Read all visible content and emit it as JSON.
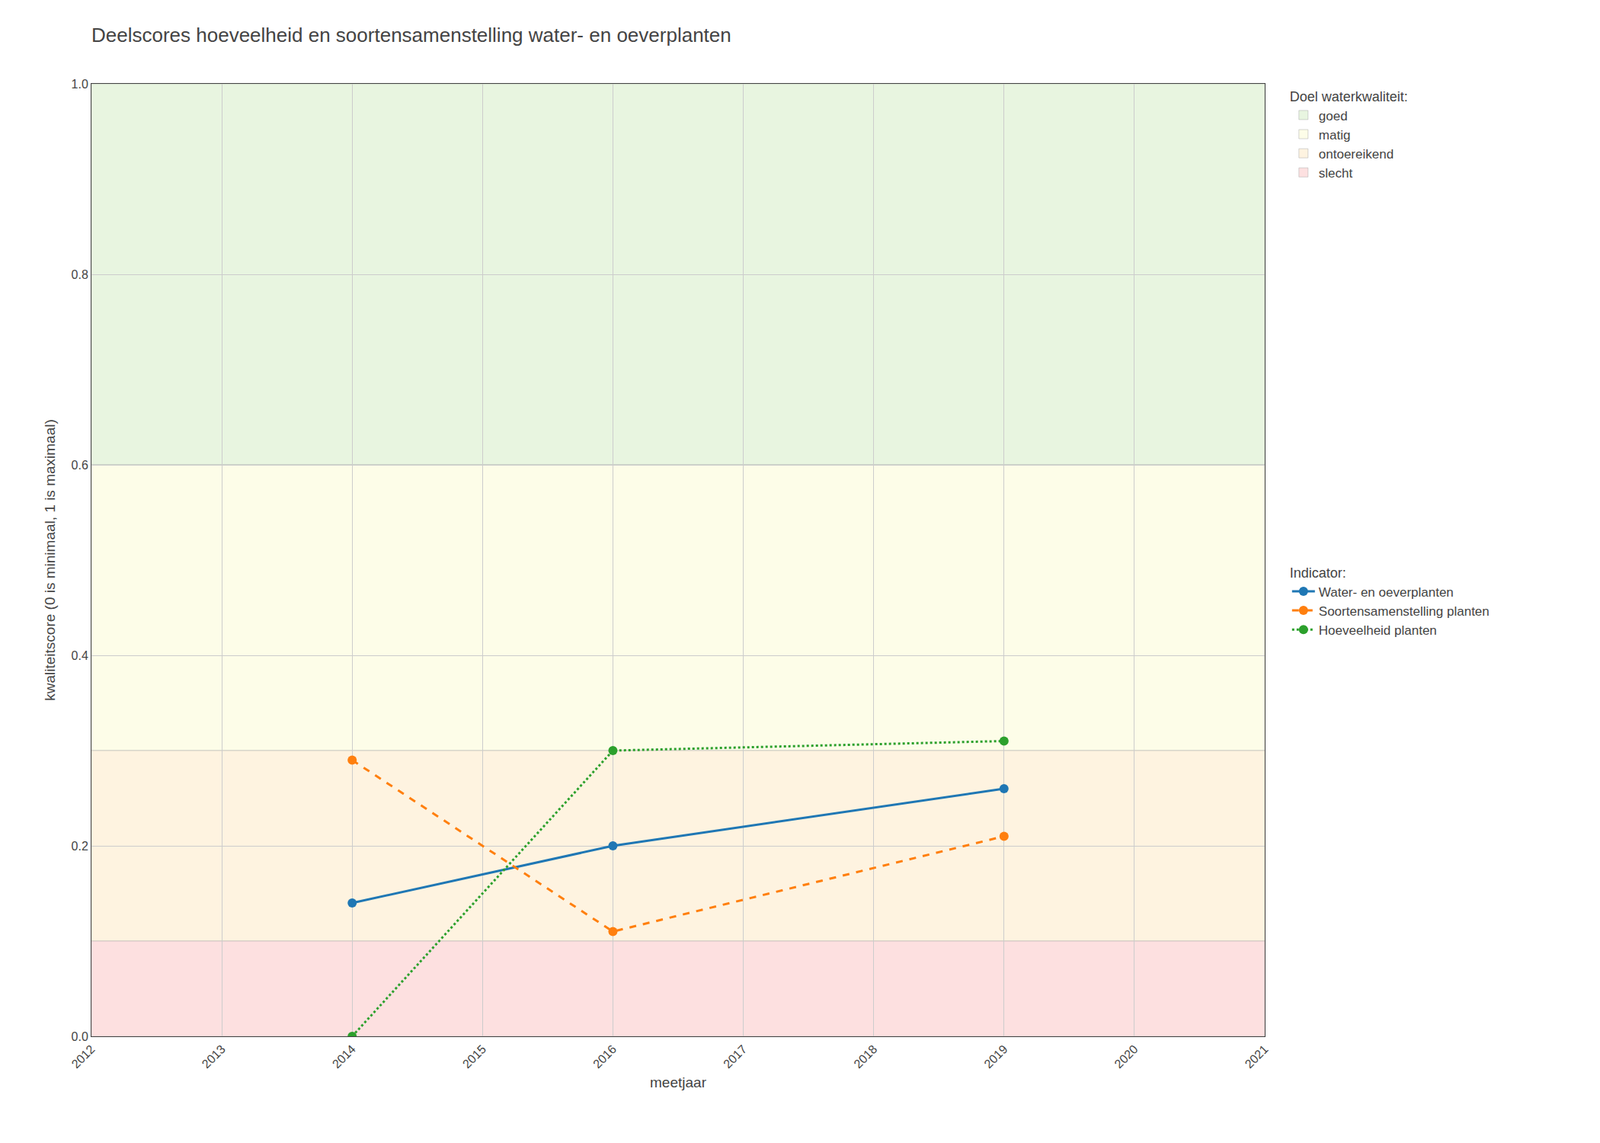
{
  "chart_data": {
    "type": "line",
    "title": "Deelscores hoeveelheid en soortensamenstelling water- en oeverplanten",
    "x_label": "meetjaar",
    "y_label": "kwaliteitscore (0 is minimaal, 1 is maximaal)",
    "xlim": [
      2012,
      2021
    ],
    "ylim": [
      0.0,
      1.0
    ],
    "xticks": [
      2012,
      2013,
      2014,
      2015,
      2016,
      2017,
      2018,
      2019,
      2020,
      2021
    ],
    "yticks": [
      {
        "value": 0.0,
        "label": "0.0"
      },
      0.2,
      0.4,
      0.6,
      0.8,
      {
        "value": 1.0,
        "label": "1.0"
      }
    ],
    "grid": true,
    "bands_title": "Doel waterkwaliteit:",
    "bands": [
      {
        "name": "goed",
        "ymin": 0.6,
        "ymax": 1.0,
        "color": "#e8f5e0"
      },
      {
        "name": "matig",
        "ymin": 0.3,
        "ymax": 0.6,
        "color": "#fdfde8"
      },
      {
        "name": "ontoereikend",
        "ymin": 0.1,
        "ymax": 0.3,
        "color": "#fef3e0"
      },
      {
        "name": "slecht",
        "ymin": 0.0,
        "ymax": 0.1,
        "color": "#fde0e0"
      }
    ],
    "series_title": "Indicator:",
    "series": [
      {
        "name": "Water- en oeverplanten",
        "x": [
          2014,
          2016,
          2019
        ],
        "values": [
          0.14,
          0.2,
          0.26
        ],
        "line_style": "solid",
        "marker": "circle"
      },
      {
        "name": "Soortensamenstelling planten",
        "x": [
          2014,
          2016,
          2019
        ],
        "values": [
          0.29,
          0.11,
          0.21
        ],
        "line_style": "dashed",
        "marker": "circle"
      },
      {
        "name": "Hoeveelheid planten",
        "x": [
          2014,
          2016,
          2019
        ],
        "values": [
          0.0,
          0.3,
          0.31
        ],
        "line_style": "dotted",
        "marker": "circle"
      }
    ]
  }
}
